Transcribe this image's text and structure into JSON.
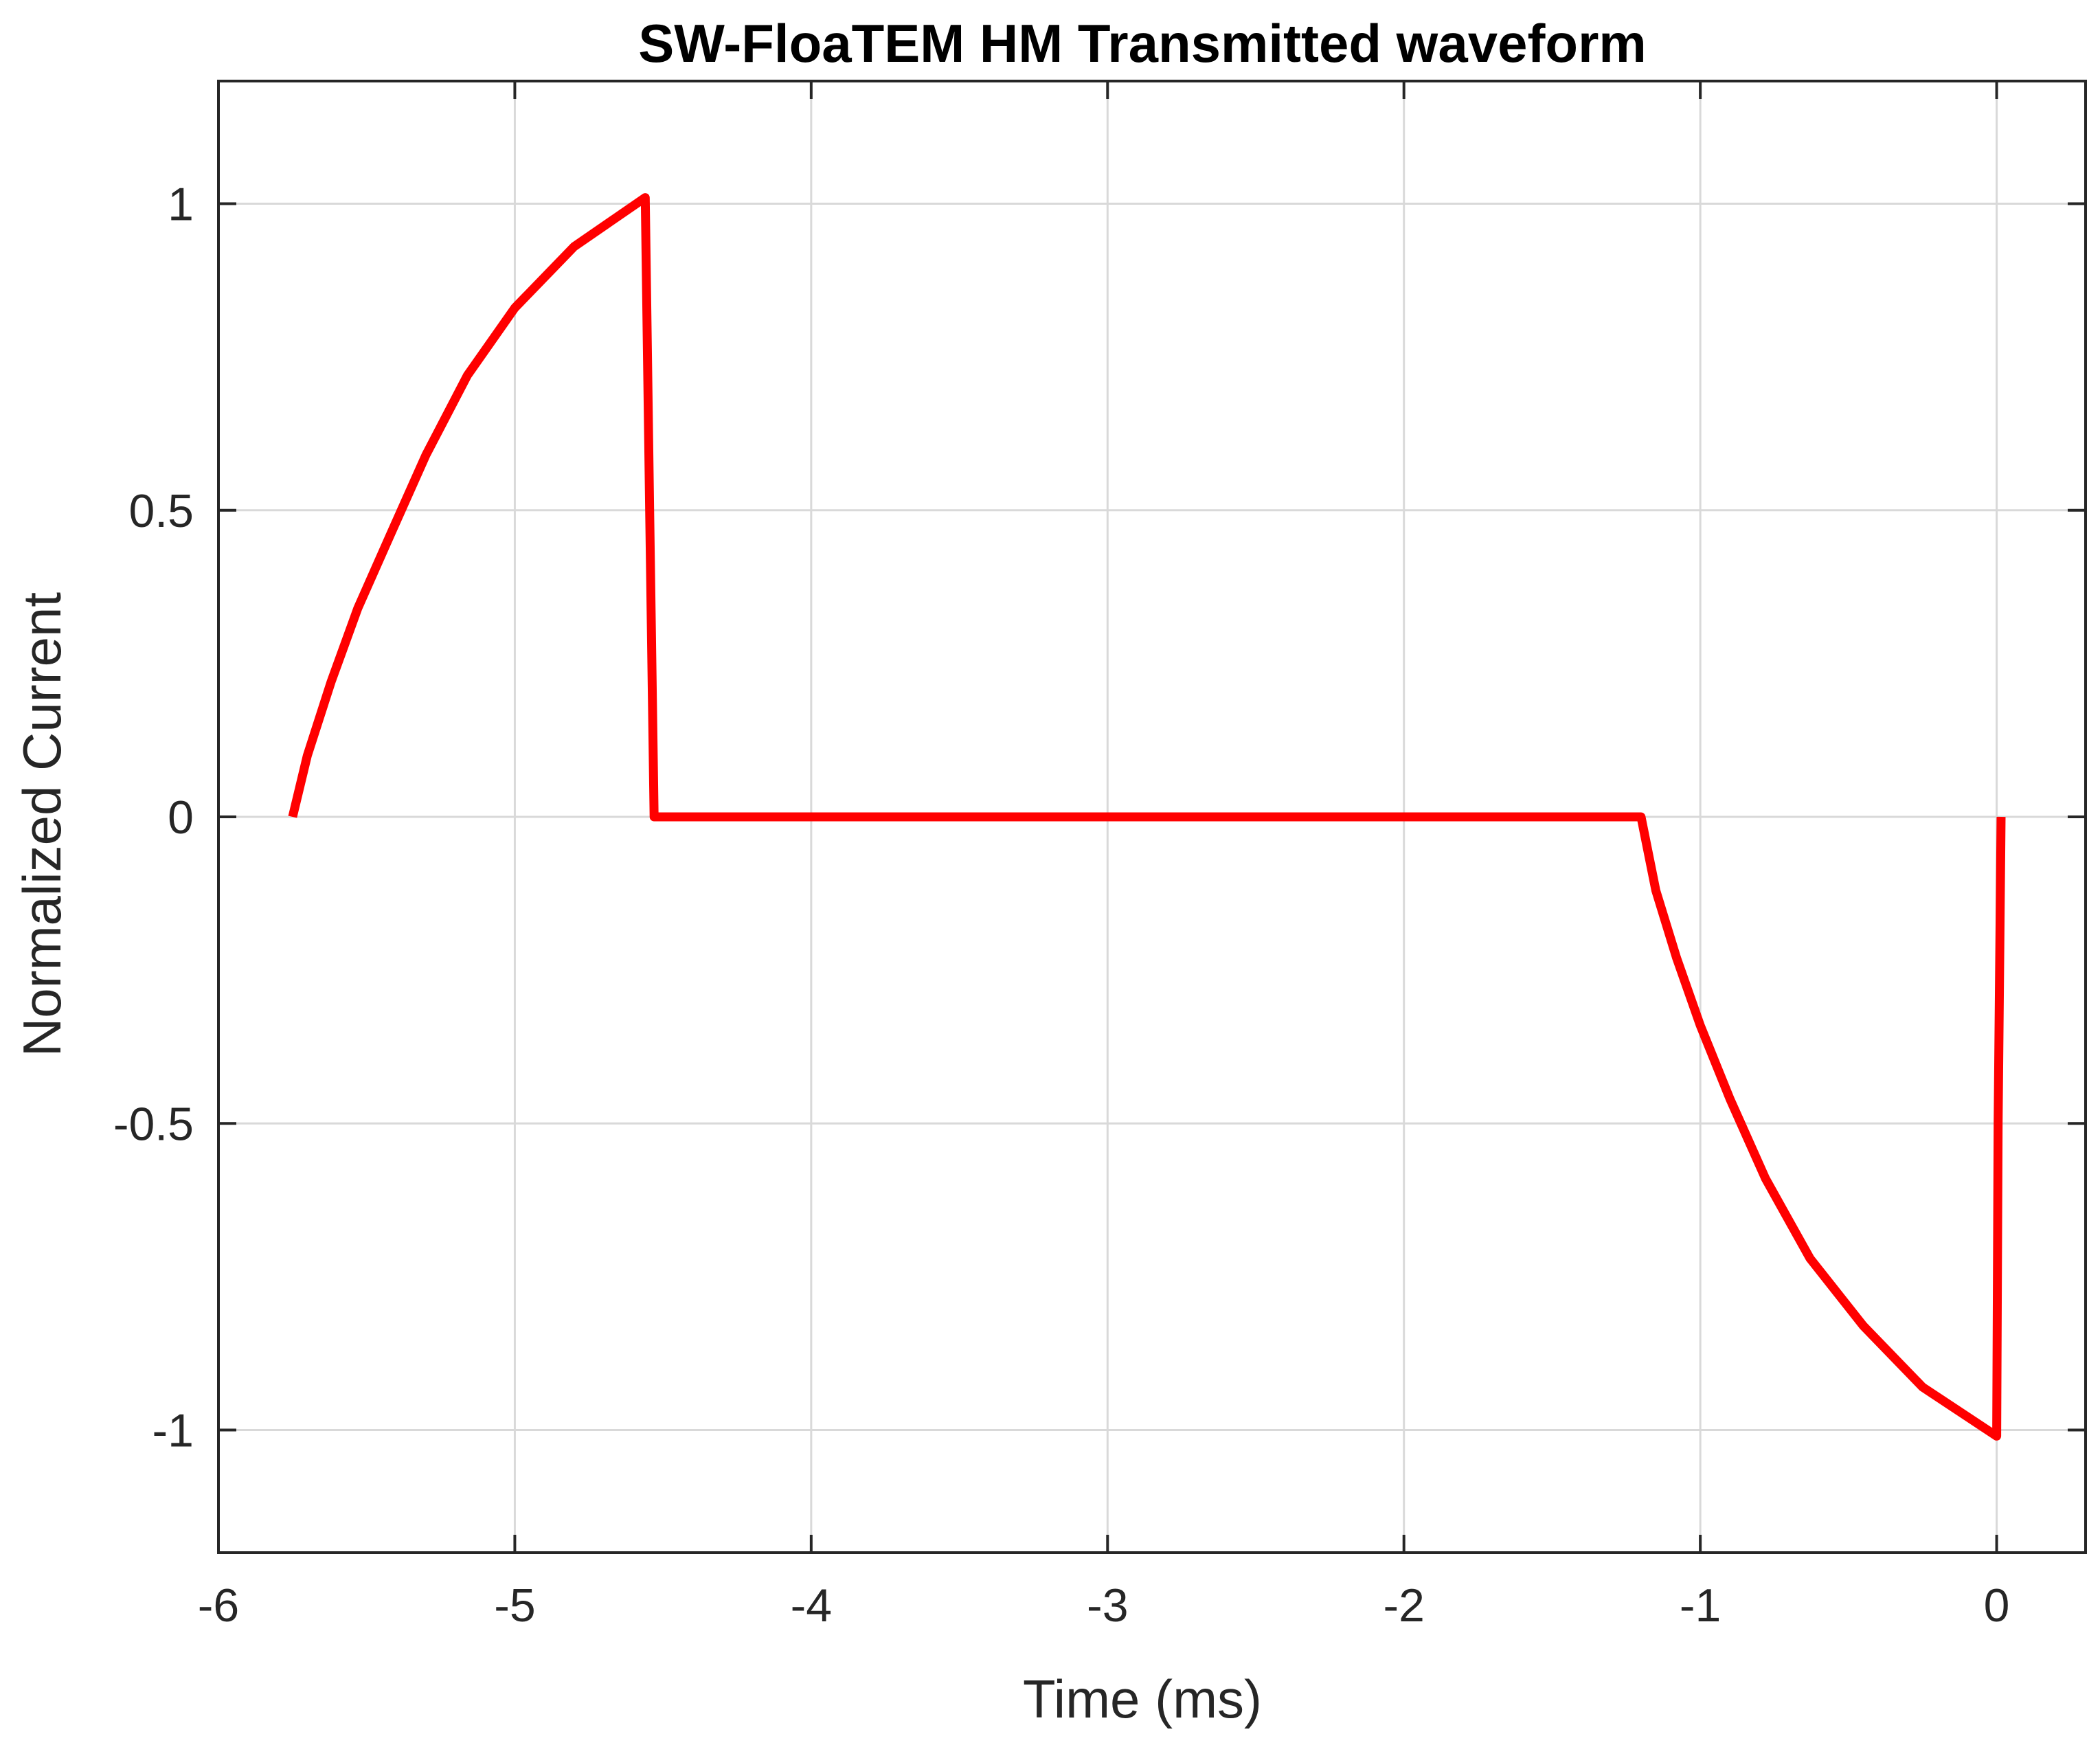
{
  "chart_data": {
    "type": "line",
    "title": "SW-FloaTEM HM Transmitted waveform",
    "xlabel": "Time (ms)",
    "ylabel": "Normalized Current",
    "xlim": [
      -6,
      0.3
    ],
    "ylim": [
      -1.2,
      1.2
    ],
    "xticks": [
      -6,
      -5,
      -4,
      -3,
      -2,
      -1,
      0
    ],
    "xtick_labels": [
      "-6",
      "-5",
      "-4",
      "-3",
      "-2",
      "-1",
      "0"
    ],
    "yticks": [
      -1,
      -0.5,
      0,
      0.5,
      1
    ],
    "ytick_labels": [
      "-1",
      "-0.5",
      "0",
      "0.5",
      "1"
    ],
    "grid": true,
    "line_color": "#ff0000",
    "series": [
      {
        "x": [
          -5.75,
          -5.7,
          -5.62,
          -5.53,
          -5.42,
          -5.3,
          -5.16,
          -5.0,
          -4.8,
          -4.56,
          -4.545,
          -4.53,
          -1.2,
          -1.15,
          -1.08,
          -1.0,
          -0.9,
          -0.78,
          -0.63,
          -0.45,
          -0.25,
          0.0,
          0.005,
          0.015
        ],
        "y": [
          0.0,
          0.1,
          0.22,
          0.34,
          0.46,
          0.59,
          0.72,
          0.83,
          0.93,
          1.01,
          0.5,
          0.0,
          0.0,
          -0.12,
          -0.23,
          -0.34,
          -0.46,
          -0.59,
          -0.72,
          -0.83,
          -0.93,
          -1.01,
          -0.5,
          0.0
        ]
      }
    ]
  }
}
